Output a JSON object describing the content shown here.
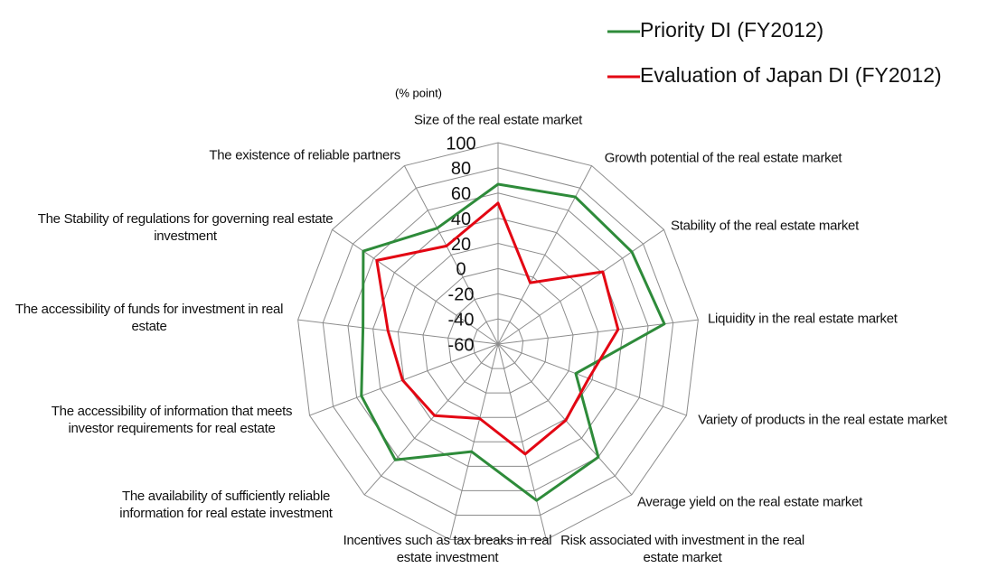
{
  "chart_data": {
    "type": "radar",
    "unit_label": "(% point)",
    "categories": [
      "Size of the real estate market",
      "Growth potential of the real estate market",
      "Stability of the real estate market",
      "Liquidity in the real estate market",
      "Variety of products in the real estate market",
      "Average yield on the real estate market",
      "Risk associated with investment in the real estate market",
      "Incentives such as tax breaks in real estate investment",
      "The availability of sufficiently reliable information for real estate investment",
      "The accessibility of information that meets investor requirements for real estate",
      "The accessibility of funds for investment in real estate",
      "The Stability of regulations for governing real estate investment",
      "The existence of reliable partners"
    ],
    "series": [
      {
        "name": "Priority DI (FY2012)",
        "color": "#2e8b3a",
        "values": [
          67,
          72,
          69,
          73,
          6,
          60,
          68,
          28,
          63,
          56,
          48,
          70,
          44
        ]
      },
      {
        "name": "Evaluation of Japan DI (FY2012)",
        "color": "#e30613",
        "values": [
          52,
          -5,
          41,
          36,
          17,
          21,
          30,
          1,
          16,
          21,
          28,
          57,
          28
        ]
      }
    ],
    "rlim": [
      -60,
      100
    ],
    "rticks": [
      -60,
      -40,
      -20,
      0,
      20,
      40,
      60,
      80,
      100
    ],
    "grid": true,
    "legend": "top-right"
  }
}
